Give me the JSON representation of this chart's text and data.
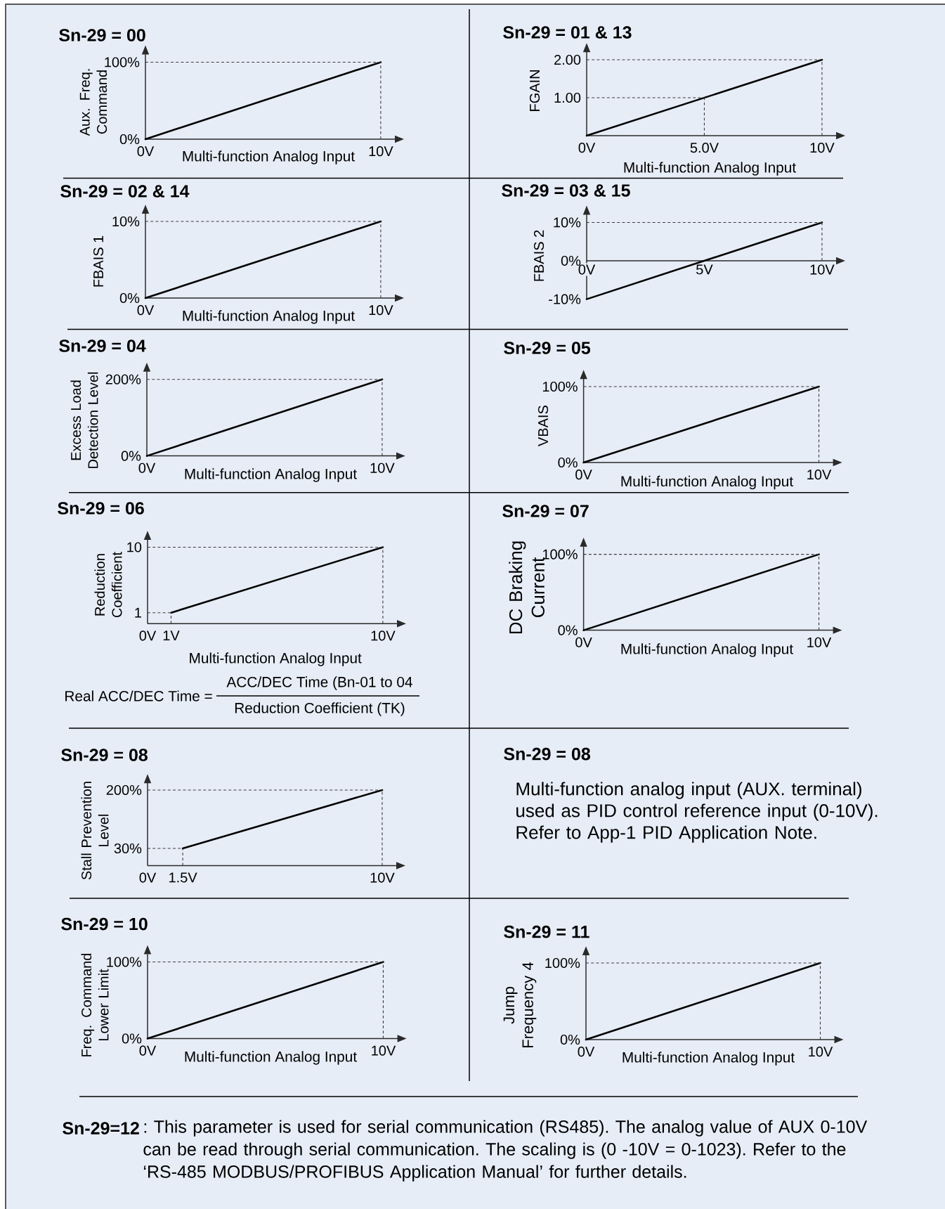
{
  "chart_data": [
    {
      "type": "line",
      "title": "Sn-29 = 00",
      "xlabel": "Multi-function Analog Input",
      "ylabel": "Aux. Freq. Command",
      "x": [
        0,
        10
      ],
      "values": [
        0,
        100
      ],
      "color": "#000000",
      "line_style": "solid",
      "xlim": [
        0,
        10.6
      ],
      "ylim": [
        0,
        110
      ],
      "xticks": [
        {
          "value": 0,
          "label": "0V"
        },
        {
          "value": 10,
          "label": "10V"
        }
      ],
      "yticks": [
        {
          "value": 0,
          "label": "0%"
        },
        {
          "value": 100,
          "label": "100%"
        }
      ],
      "ref_lines": [
        {
          "axis": "y",
          "value": 100,
          "color": "#3c3c3c",
          "line_style": "dashed"
        },
        {
          "axis": "x",
          "value": 10,
          "color": "#3c3c3c",
          "line_style": "dashed"
        }
      ]
    },
    {
      "type": "line",
      "title": "Sn-29 = 01 & 13",
      "xlabel": "Multi-function Analog Input",
      "ylabel": "FGAIN",
      "x": [
        0,
        10
      ],
      "values": [
        0,
        2
      ],
      "color": "#000000",
      "line_style": "solid",
      "xlim": [
        0,
        10.6
      ],
      "ylim": [
        0,
        2.2
      ],
      "xticks": [
        {
          "value": 0,
          "label": "0V"
        },
        {
          "value": 5,
          "label": "5.0V"
        },
        {
          "value": 10,
          "label": "10V"
        }
      ],
      "yticks": [
        {
          "value": 1,
          "label": "1.00"
        },
        {
          "value": 2,
          "label": "2.00"
        }
      ],
      "ref_lines": [
        {
          "axis": "y",
          "value": 1,
          "color": "#3c3c3c",
          "line_style": "dashed"
        },
        {
          "axis": "y",
          "value": 2,
          "color": "#3c3c3c",
          "line_style": "dashed"
        },
        {
          "axis": "x",
          "value": 5,
          "color": "#3c3c3c",
          "line_style": "dashed"
        },
        {
          "axis": "x",
          "value": 10,
          "color": "#3c3c3c",
          "line_style": "dashed"
        }
      ]
    },
    {
      "type": "line",
      "title": "Sn-29 = 02 & 14",
      "xlabel": "Multi-function Analog Input",
      "ylabel": "FBAIS 1",
      "x": [
        0,
        10
      ],
      "values": [
        0,
        10
      ],
      "color": "#000000",
      "line_style": "solid",
      "xlim": [
        0,
        10.6
      ],
      "ylim": [
        0,
        11
      ],
      "xticks": [
        {
          "value": 0,
          "label": "0V"
        },
        {
          "value": 10,
          "label": "10V"
        }
      ],
      "yticks": [
        {
          "value": 0,
          "label": "0%"
        },
        {
          "value": 10,
          "label": "10%"
        }
      ],
      "ref_lines": [
        {
          "axis": "y",
          "value": 10,
          "color": "#3c3c3c",
          "line_style": "dashed"
        },
        {
          "axis": "x",
          "value": 10,
          "color": "#3c3c3c",
          "line_style": "dashed"
        }
      ]
    },
    {
      "type": "line",
      "title": "Sn-29 = 03 & 15",
      "ylabel": "FBAIS 2",
      "x": [
        0,
        10
      ],
      "values": [
        -10,
        10
      ],
      "color": "#000000",
      "line_style": "solid",
      "xlim": [
        0,
        10.6
      ],
      "ylim": [
        -10,
        12
      ],
      "xticks": [
        {
          "value": 0,
          "label": "0V"
        },
        {
          "value": 5,
          "label": "5V"
        },
        {
          "value": 10,
          "label": "10V"
        }
      ],
      "yticks": [
        {
          "value": -10,
          "label": "-10%"
        },
        {
          "value": 0,
          "label": "0%"
        },
        {
          "value": 10,
          "label": "10%"
        }
      ],
      "ref_lines": [
        {
          "axis": "y",
          "value": 10,
          "color": "#3c3c3c",
          "line_style": "dashed"
        },
        {
          "axis": "x",
          "value": 10,
          "color": "#3c3c3c",
          "line_style": "dashed"
        }
      ]
    },
    {
      "type": "line",
      "title": "Sn-29 = 04",
      "xlabel": "Multi-function Analog Input",
      "ylabel": "Excess Load Detection Level",
      "x": [
        0,
        10
      ],
      "values": [
        0,
        200
      ],
      "color": "#000000",
      "line_style": "solid",
      "xlim": [
        0,
        10.6
      ],
      "ylim": [
        0,
        220
      ],
      "xticks": [
        {
          "value": 0,
          "label": "0V"
        },
        {
          "value": 10,
          "label": "10V"
        }
      ],
      "yticks": [
        {
          "value": 0,
          "label": "0%"
        },
        {
          "value": 200,
          "label": "200%"
        }
      ],
      "ref_lines": [
        {
          "axis": "y",
          "value": 200,
          "color": "#3c3c3c",
          "line_style": "dashed"
        },
        {
          "axis": "x",
          "value": 10,
          "color": "#3c3c3c",
          "line_style": "dashed"
        }
      ]
    },
    {
      "type": "line",
      "title": "Sn-29 = 05",
      "xlabel": "Multi-function Analog Input",
      "ylabel": "VBAIS",
      "x": [
        0,
        10
      ],
      "values": [
        0,
        100
      ],
      "color": "#000000",
      "line_style": "solid",
      "xlim": [
        0,
        10.6
      ],
      "ylim": [
        0,
        110
      ],
      "xticks": [
        {
          "value": 0,
          "label": "0V"
        },
        {
          "value": 10,
          "label": "10V"
        }
      ],
      "yticks": [
        {
          "value": 0,
          "label": "0%"
        },
        {
          "value": 100,
          "label": "100%"
        }
      ],
      "ref_lines": [
        {
          "axis": "y",
          "value": 100,
          "color": "#3c3c3c",
          "line_style": "dashed"
        },
        {
          "axis": "x",
          "value": 10,
          "color": "#3c3c3c",
          "line_style": "dashed"
        }
      ]
    },
    {
      "type": "line",
      "title": "Sn-29 = 06",
      "xlabel": "Multi-function Analog Input",
      "ylabel": "Reduction Coefficient",
      "x": [
        1,
        10
      ],
      "values": [
        1,
        10
      ],
      "color": "#000000",
      "line_style": "solid",
      "xlim": [
        0,
        10.6
      ],
      "ylim": [
        -0.5,
        11
      ],
      "xticks": [
        {
          "value": 0,
          "label": "0V"
        },
        {
          "value": 1,
          "label": "1V"
        },
        {
          "value": 10,
          "label": "10V"
        }
      ],
      "yticks": [
        1,
        10
      ],
      "ref_lines": [
        {
          "axis": "y",
          "value": 1,
          "color": "#3c3c3c",
          "line_style": "dashed"
        },
        {
          "axis": "y",
          "value": 10,
          "color": "#3c3c3c",
          "line_style": "dashed"
        },
        {
          "axis": "x",
          "value": 1,
          "color": "#3c3c3c",
          "line_style": "dashed"
        },
        {
          "axis": "x",
          "value": 10,
          "color": "#3c3c3c",
          "line_style": "dashed"
        }
      ],
      "annotations": [
        "Real ACC/DEC Time =",
        "ACC/DEC Time (Bn-01 to 04",
        "Reduction Coefficient (TK)"
      ]
    },
    {
      "type": "line",
      "title": "Sn-29 = 07",
      "xlabel": "Multi-function Analog Input",
      "ylabel": "DC Braking Current",
      "x": [
        0,
        10
      ],
      "values": [
        0,
        100
      ],
      "color": "#000000",
      "line_style": "solid",
      "xlim": [
        0,
        10.6
      ],
      "ylim": [
        0,
        110
      ],
      "xticks": [
        {
          "value": 0,
          "label": "0V"
        },
        {
          "value": 10,
          "label": "10V"
        }
      ],
      "yticks": [
        {
          "value": 0,
          "label": "0%"
        },
        {
          "value": 100,
          "label": "100%"
        }
      ],
      "ref_lines": [
        {
          "axis": "y",
          "value": 100,
          "color": "#3c3c3c",
          "line_style": "dashed"
        },
        {
          "axis": "x",
          "value": 10,
          "color": "#3c3c3c",
          "line_style": "dashed"
        }
      ]
    },
    {
      "type": "line",
      "title": "Sn-29 = 08",
      "ylabel": "Stall Prevention Level",
      "x": [
        1.5,
        10
      ],
      "values": [
        30,
        200
      ],
      "color": "#000000",
      "line_style": "solid",
      "xlim": [
        0,
        10.6
      ],
      "ylim": [
        -20,
        220
      ],
      "xticks": [
        {
          "value": 0,
          "label": "0V"
        },
        {
          "value": 1.5,
          "label": "1.5V"
        },
        {
          "value": 10,
          "label": "10V"
        }
      ],
      "yticks": [
        {
          "value": 30,
          "label": "30%"
        },
        {
          "value": 200,
          "label": "200%"
        }
      ],
      "ref_lines": [
        {
          "axis": "y",
          "value": 30,
          "color": "#3c3c3c",
          "line_style": "dashed"
        },
        {
          "axis": "y",
          "value": 200,
          "color": "#3c3c3c",
          "line_style": "dashed"
        },
        {
          "axis": "x",
          "value": 1.5,
          "color": "#3c3c3c",
          "line_style": "dashed"
        },
        {
          "axis": "x",
          "value": 10,
          "color": "#3c3c3c",
          "line_style": "dashed"
        }
      ]
    },
    {
      "type": "other",
      "title": "Sn-29 = 08",
      "annotations": [
        "Multi-function analog input (AUX. terminal) used as PID control reference input (0-10V).",
        "Refer to App-1 PID Application Note."
      ]
    },
    {
      "type": "line",
      "title": "Sn-29 = 10",
      "xlabel": "Multi-function Analog Input",
      "ylabel": "Freq. Command Lower Limit",
      "x": [
        0,
        10
      ],
      "values": [
        0,
        100
      ],
      "color": "#000000",
      "line_style": "solid",
      "xlim": [
        0,
        10.6
      ],
      "ylim": [
        0,
        110
      ],
      "xticks": [
        {
          "value": 0,
          "label": "0V"
        },
        {
          "value": 10,
          "label": "10V"
        }
      ],
      "yticks": [
        {
          "value": 0,
          "label": "0%"
        },
        {
          "value": 100,
          "label": "100%"
        }
      ],
      "ref_lines": [
        {
          "axis": "y",
          "value": 100,
          "color": "#3c3c3c",
          "line_style": "dashed"
        },
        {
          "axis": "x",
          "value": 10,
          "color": "#3c3c3c",
          "line_style": "dashed"
        }
      ]
    },
    {
      "type": "line",
      "title": "Sn-29 = 11",
      "xlabel": "Multi-function Analog Input",
      "ylabel": "Jump Frequency 4",
      "x": [
        0,
        10
      ],
      "values": [
        0,
        100
      ],
      "color": "#000000",
      "line_style": "solid",
      "xlim": [
        0,
        10.6
      ],
      "ylim": [
        0,
        110
      ],
      "xticks": [
        {
          "value": 0,
          "label": "0V"
        },
        {
          "value": 10,
          "label": "10V"
        }
      ],
      "yticks": [
        {
          "value": 0,
          "label": "0%"
        },
        {
          "value": 100,
          "label": "100%"
        }
      ],
      "ref_lines": [
        {
          "axis": "y",
          "value": 100,
          "color": "#3c3c3c",
          "line_style": "dashed"
        },
        {
          "axis": "x",
          "value": 10,
          "color": "#3c3c3c",
          "line_style": "dashed"
        }
      ]
    },
    {
      "type": "other",
      "title": "Sn-29=12",
      "annotations": [
        ": This parameter is used for serial communication (RS485). The analog value of AUX 0-10V can be read through serial communication. The scaling is (0 -10V = 0-1023). Refer to the ‘RS-485 MODBUS/PROFIBUS Application Manual’ for further details."
      ]
    }
  ]
}
